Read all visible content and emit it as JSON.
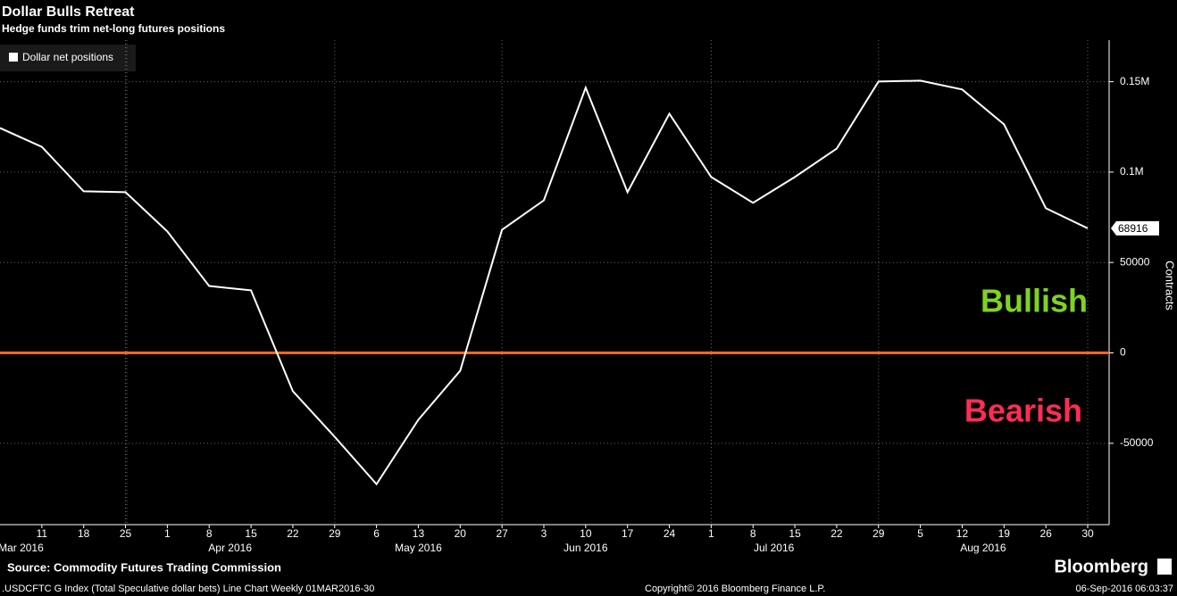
{
  "chart_data": {
    "type": "line",
    "title": "Dollar Bulls Retreat",
    "subtitle": "Hedge funds trim net-long futures positions",
    "y_axis_label": "Contracts",
    "categories": [
      null,
      "11",
      "18",
      "25",
      "1",
      "8",
      "15",
      "22",
      "29",
      "6",
      "13",
      "20",
      "27",
      "3",
      "10",
      "17",
      "24",
      "1",
      "8",
      "15",
      "22",
      "29",
      "5",
      "12",
      "19",
      "26",
      "30"
    ],
    "month_labels": [
      "Mar 2016",
      "Apr 2016",
      "May 2016",
      "Jun 2016",
      "Jul 2016",
      "Aug 2016"
    ],
    "series": [
      {
        "name": "Dollar net positions",
        "color": "#ffffff",
        "values": [
          124400,
          114000,
          89400,
          88900,
          67200,
          37000,
          34600,
          -21200,
          -46400,
          -72600,
          -37000,
          -9900,
          68100,
          84400,
          146700,
          88900,
          132300,
          97300,
          83000,
          97300,
          113000,
          150100,
          150600,
          145700,
          126400,
          80000,
          68916
        ],
        "value_labels": [
          null,
          null,
          null,
          null,
          null,
          null,
          null,
          null,
          null,
          null,
          null,
          null,
          null,
          null,
          null,
          null,
          null,
          null,
          null,
          null,
          null,
          null,
          null,
          null,
          null,
          null,
          "68916"
        ]
      }
    ],
    "ylim": [
      -95000,
      173000
    ],
    "yticks": [
      {
        "value": 150000,
        "label": "0.15M"
      },
      {
        "value": 100000,
        "label": "0.1M"
      },
      50000,
      0,
      -50000
    ],
    "grid": true,
    "reference_line": {
      "value": 0,
      "color": "#ff6a1a"
    },
    "annotations": [
      {
        "text": "Bullish",
        "color": "#7ed321"
      },
      {
        "text": "Bearish",
        "color": "#ff2d55"
      }
    ],
    "source": "Source: Commodity Futures Trading Commission",
    "footnote": ".USDCFTC G Index (Total Speculative dollar bets) Line Chart  Weekly 01MAR2016-30",
    "copyright": "Copyright© 2016 Bloomberg Finance L.P.",
    "date": "06-Sep-2016 06:03:37",
    "brand": "Bloomberg"
  }
}
